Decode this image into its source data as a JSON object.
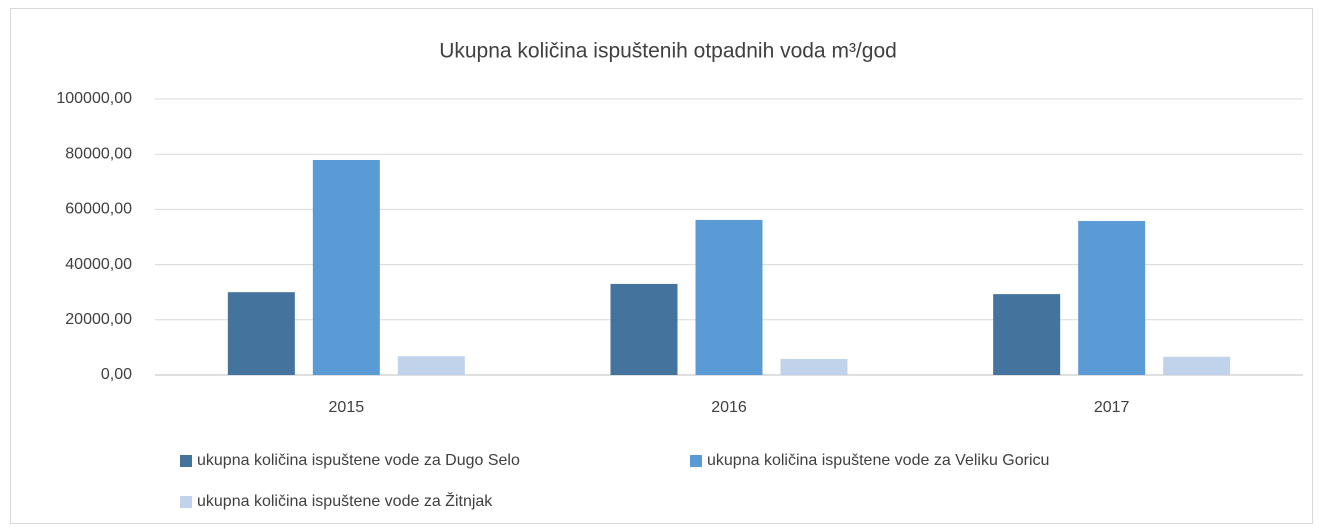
{
  "chart_data": {
    "type": "bar",
    "title": "Ukupna količina ispuštenih otpadnih voda m³/god",
    "categories": [
      "2015",
      "2016",
      "2017"
    ],
    "series": [
      {
        "name": "ukupna količina ispuštene vode za Dugo Selo",
        "color": "#44739e",
        "values": [
          30000,
          33000,
          29300
        ]
      },
      {
        "name": "ukupna količina ispuštene vode za Veliku Goricu",
        "color": "#5b9bd5",
        "values": [
          77900,
          56200,
          55800
        ]
      },
      {
        "name": "ukupna količina ispuštene vode za Žitnjak",
        "color": "#c0d3ea",
        "values": [
          6800,
          5800,
          6600
        ]
      }
    ],
    "ylim": [
      0,
      100000
    ],
    "yticks": [
      {
        "value": 0,
        "label": "0,00"
      },
      {
        "value": 20000,
        "label": "20000,00"
      },
      {
        "value": 40000,
        "label": "40000,00"
      },
      {
        "value": 60000,
        "label": "60000,00"
      },
      {
        "value": 80000,
        "label": "80000,00"
      },
      {
        "value": 100000,
        "label": "100000,00"
      }
    ],
    "grid": true,
    "legend": "bottom"
  }
}
